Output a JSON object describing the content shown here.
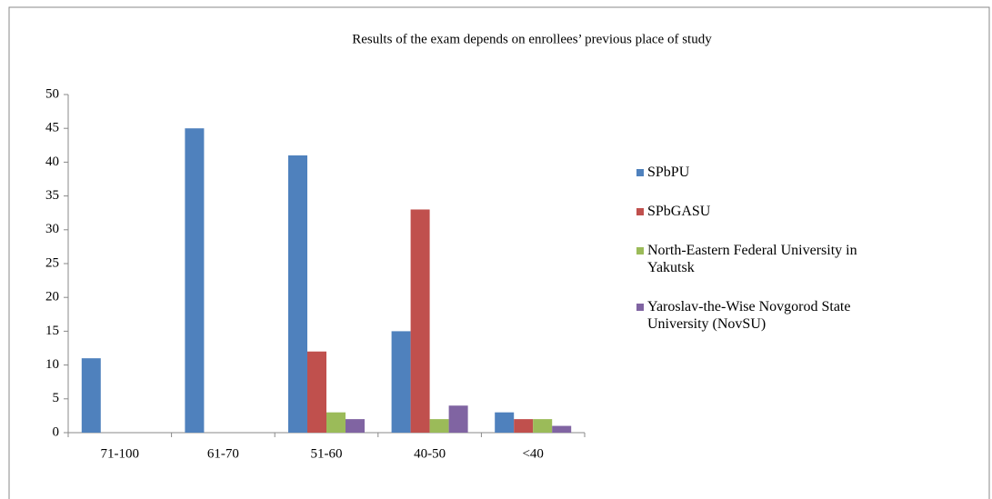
{
  "chart_data": {
    "type": "bar",
    "title": "Results of the exam depends on enrollees’ previous place of study",
    "categories": [
      "71-100",
      "61-70",
      "51-60",
      "40-50",
      "<40"
    ],
    "series": [
      {
        "name": "SPbPU",
        "color": "#4f81bd",
        "values": [
          11,
          45,
          41,
          15,
          3
        ]
      },
      {
        "name": "SPbGASU",
        "color": "#c0504d",
        "values": [
          0,
          0,
          12,
          33,
          2
        ]
      },
      {
        "name": "North-Eastern Federal University in Yakutsk",
        "color": "#9bbb59",
        "values": [
          0,
          0,
          3,
          2,
          2
        ]
      },
      {
        "name": "Yaroslav-the-Wise Novgorod State University (NovSU)",
        "color": "#8064a2",
        "values": [
          0,
          0,
          2,
          4,
          1
        ]
      }
    ],
    "ylim": [
      0,
      50
    ],
    "yticks": [
      0,
      5,
      10,
      15,
      20,
      25,
      30,
      35,
      40,
      45,
      50
    ],
    "grid": false,
    "legend": "right"
  }
}
